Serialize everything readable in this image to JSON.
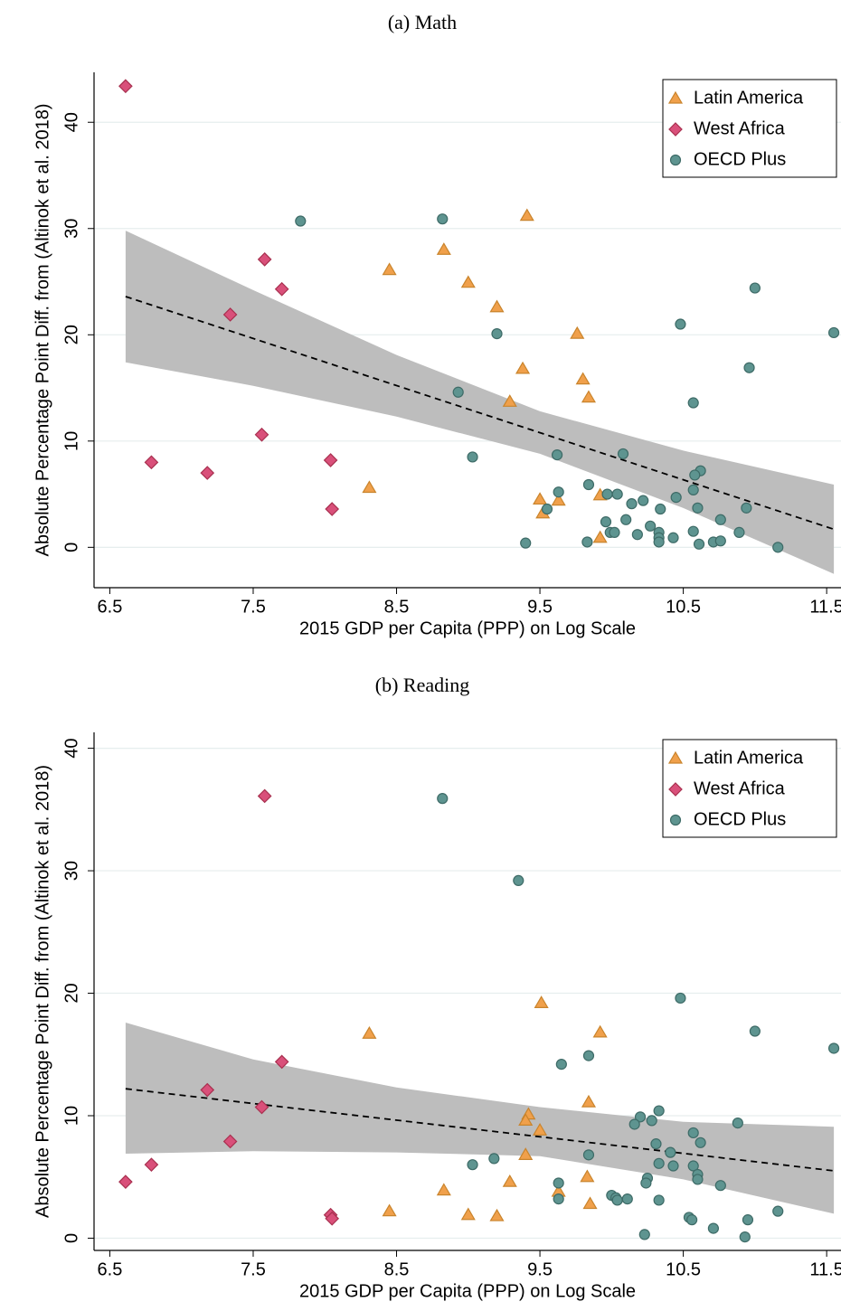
{
  "chart_data": [
    {
      "type": "scatter",
      "title": "(a) Math",
      "x_label": "2015 GDP per Capita (PPP) on Log Scale",
      "y_label": "Absolute Percentage Point Diff. from (Altinok et al. 2018)",
      "xlim": [
        6.39,
        11.6
      ],
      "ylim": [
        -3.8,
        44.7
      ],
      "xticks": [
        6.5,
        7.5,
        8.5,
        9.5,
        10.5,
        11.5
      ],
      "yticks": [
        0,
        10,
        20,
        30,
        40
      ],
      "grid": true,
      "legend": "upper right",
      "series": [
        {
          "name": "Latin America",
          "marker": "triangle",
          "color": "#f0a04b",
          "x": [
            9.41,
            8.83,
            8.45,
            9.0,
            9.2,
            9.76,
            9.38,
            9.8,
            9.84,
            9.29,
            8.31,
            9.5,
            9.63,
            9.52,
            9.92,
            9.92
          ],
          "values": [
            31.2,
            28.0,
            26.1,
            24.9,
            22.6,
            20.1,
            16.8,
            15.8,
            14.1,
            13.7,
            5.6,
            4.5,
            4.4,
            3.2,
            4.9,
            0.9
          ]
        },
        {
          "name": "West Africa",
          "marker": "diamond",
          "color": "#d9507a",
          "x": [
            6.61,
            7.58,
            7.7,
            7.34,
            7.56,
            6.79,
            7.18,
            8.04,
            8.05
          ],
          "values": [
            43.4,
            27.1,
            24.3,
            21.9,
            10.6,
            8.0,
            7.0,
            8.2,
            3.6
          ]
        },
        {
          "name": "OECD Plus",
          "marker": "circle",
          "color": "#5e9490",
          "x": [
            7.83,
            8.82,
            11.0,
            11.55,
            10.48,
            9.2,
            10.96,
            8.93,
            10.57,
            9.62,
            9.03,
            10.08,
            10.62,
            10.58,
            9.84,
            9.63,
            10.57,
            9.97,
            10.04,
            10.45,
            10.22,
            10.14,
            10.6,
            10.94,
            9.55,
            10.34,
            10.1,
            9.96,
            10.76,
            10.27,
            10.33,
            10.57,
            9.99,
            10.02,
            10.18,
            10.33,
            10.43,
            10.89,
            9.4,
            9.83,
            10.33,
            10.61,
            10.71,
            10.76,
            11.16
          ],
          "values": [
            30.7,
            30.9,
            24.4,
            20.2,
            21.0,
            20.1,
            16.9,
            14.6,
            13.6,
            8.7,
            8.5,
            8.8,
            7.2,
            6.8,
            5.9,
            5.2,
            5.4,
            5.0,
            5.0,
            4.7,
            4.4,
            4.1,
            3.7,
            3.7,
            3.6,
            3.6,
            2.6,
            2.4,
            2.6,
            2.0,
            1.4,
            1.5,
            1.4,
            1.4,
            1.2,
            0.9,
            0.9,
            1.4,
            0.4,
            0.5,
            0.5,
            0.3,
            0.5,
            0.6,
            0.0
          ]
        }
      ],
      "fit_line": {
        "x": [
          6.61,
          11.55
        ],
        "values": [
          23.6,
          1.7
        ]
      },
      "confidence_band": {
        "x": [
          6.61,
          7.5,
          8.5,
          9.5,
          10.5,
          11.55
        ],
        "upper": [
          29.8,
          24.2,
          18.1,
          12.8,
          9.1,
          5.9
        ],
        "lower": [
          17.4,
          15.2,
          12.3,
          8.8,
          3.7,
          -2.5
        ]
      }
    },
    {
      "type": "scatter",
      "title": "(b) Reading",
      "x_label": "2015 GDP per Capita (PPP) on Log Scale",
      "y_label": "Absolute Percentage Point Diff. from (Altinok et al. 2018)",
      "xlim": [
        6.39,
        11.6
      ],
      "ylim": [
        -1.0,
        41.3
      ],
      "xticks": [
        6.5,
        7.5,
        8.5,
        9.5,
        10.5,
        11.5
      ],
      "yticks": [
        0,
        10,
        20,
        30,
        40
      ],
      "grid": true,
      "legend": "upper right",
      "series": [
        {
          "name": "Latin America",
          "marker": "triangle",
          "color": "#f0a04b",
          "x": [
            9.51,
            9.92,
            8.31,
            9.84,
            9.42,
            9.4,
            9.5,
            9.4,
            9.29,
            9.83,
            9.63,
            9.85,
            8.83,
            8.45,
            9.0,
            9.2
          ],
          "values": [
            19.2,
            16.8,
            16.7,
            11.1,
            10.1,
            9.6,
            8.8,
            6.8,
            4.6,
            5.0,
            3.8,
            2.8,
            3.9,
            2.2,
            1.9,
            1.8
          ]
        },
        {
          "name": "West Africa",
          "marker": "diamond",
          "color": "#d9507a",
          "x": [
            6.61,
            6.79,
            7.18,
            7.34,
            7.56,
            7.58,
            7.7,
            8.04,
            8.05
          ],
          "values": [
            4.6,
            6.0,
            12.1,
            7.9,
            10.7,
            36.1,
            14.4,
            1.9,
            1.6
          ]
        },
        {
          "name": "OECD Plus",
          "marker": "circle",
          "color": "#5e9490",
          "x": [
            8.82,
            9.35,
            10.48,
            11.0,
            11.55,
            9.84,
            9.65,
            10.2,
            10.16,
            10.28,
            10.33,
            10.88,
            10.57,
            10.31,
            10.62,
            10.41,
            9.84,
            9.03,
            9.18,
            10.33,
            10.43,
            10.57,
            10.6,
            10.6,
            10.25,
            10.24,
            9.63,
            10.76,
            10.0,
            10.03,
            10.04,
            10.11,
            9.63,
            10.33,
            11.16,
            10.54,
            10.56,
            10.95,
            10.71,
            10.23,
            10.93
          ],
          "values": [
            35.9,
            29.2,
            19.6,
            16.9,
            15.5,
            14.9,
            14.2,
            9.9,
            9.3,
            9.6,
            10.4,
            9.4,
            8.6,
            7.7,
            7.8,
            7.0,
            6.8,
            6.0,
            6.5,
            6.1,
            5.9,
            5.9,
            5.2,
            4.8,
            4.9,
            4.5,
            4.5,
            4.3,
            3.5,
            3.3,
            3.1,
            3.2,
            3.2,
            3.1,
            2.2,
            1.7,
            1.5,
            1.5,
            0.8,
            0.3,
            0.1
          ]
        }
      ],
      "fit_line": {
        "x": [
          6.61,
          11.55
        ],
        "values": [
          12.2,
          5.5
        ]
      },
      "confidence_band": {
        "x": [
          6.61,
          7.5,
          8.5,
          9.5,
          10.5,
          11.55
        ],
        "upper": [
          17.6,
          14.6,
          12.3,
          10.7,
          9.5,
          9.1
        ],
        "lower": [
          6.9,
          7.1,
          7.0,
          6.7,
          4.8,
          2.0
        ]
      }
    }
  ]
}
